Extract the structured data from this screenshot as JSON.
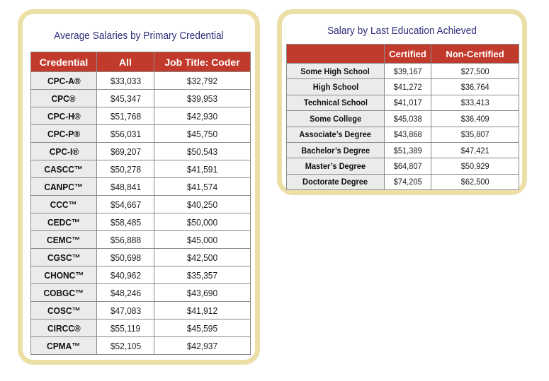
{
  "colors": {
    "panel_border": "#ecdfa6",
    "header_bg": "#c23a2b",
    "title_text": "#2b2b7a",
    "label_cell_bg": "#ebebeb"
  },
  "chart_data": [
    {
      "type": "table",
      "title": "Average Salaries by Primary Credential",
      "columns": [
        "Credential",
        "All",
        "Job Title: Coder"
      ],
      "rows": [
        [
          "CPC-A®",
          "$33,033",
          "$32,792"
        ],
        [
          "CPC®",
          "$45,347",
          "$39,953"
        ],
        [
          "CPC-H®",
          "$51,768",
          "$42,930"
        ],
        [
          "CPC-P®",
          "$56,031",
          "$45,750"
        ],
        [
          "CPC-I®",
          "$69,207",
          "$50,543"
        ],
        [
          "CASCC™",
          "$50,278",
          "$41,591"
        ],
        [
          "CANPC™",
          "$48,841",
          "$41,574"
        ],
        [
          "CCC™",
          "$54,667",
          "$40,250"
        ],
        [
          "CEDC™",
          "$58,485",
          "$50,000"
        ],
        [
          "CEMC™",
          "$56,888",
          "$45,000"
        ],
        [
          "CGSC™",
          "$50,698",
          "$42,500"
        ],
        [
          "CHONC™",
          "$40,962",
          "$35,357"
        ],
        [
          "COBGC™",
          "$48,246",
          "$43,690"
        ],
        [
          "COSC™",
          "$47,083",
          "$41,912"
        ],
        [
          "CIRCC®",
          "$55,119",
          "$45,595"
        ],
        [
          "CPMA™",
          "$52,105",
          "$42,937"
        ]
      ]
    },
    {
      "type": "table",
      "title": "Salary by Last Education Achieved",
      "columns": [
        "",
        "Certified",
        "Non-Certified"
      ],
      "rows": [
        [
          "Some High School",
          "$39,167",
          "$27,500"
        ],
        [
          "High School",
          "$41,272",
          "$36,764"
        ],
        [
          "Technical School",
          "$41,017",
          "$33,413"
        ],
        [
          "Some College",
          "$45,038",
          "$36,409"
        ],
        [
          "Associate’s Degree",
          "$43,868",
          "$35,807"
        ],
        [
          "Bachelor’s Degree",
          "$51,389",
          "$47,421"
        ],
        [
          "Master’s Degree",
          "$64,807",
          "$50,929"
        ],
        [
          "Doctorate Degree",
          "$74,205",
          "$62,500"
        ]
      ]
    }
  ]
}
